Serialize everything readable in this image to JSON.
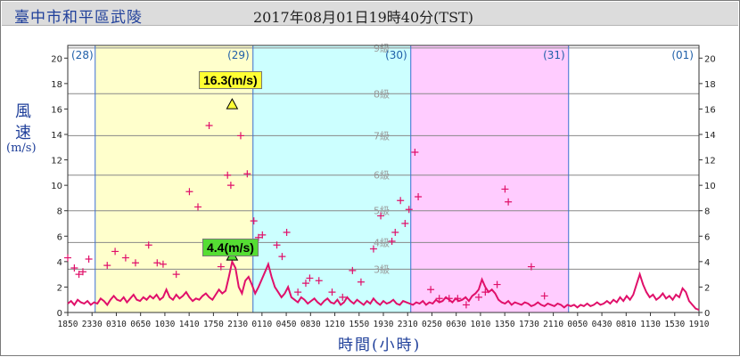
{
  "header": {
    "station": "臺中市和平區武陵",
    "datetime": "2017年08月01日19時40分(TST)"
  },
  "axis": {
    "ylabel_chars": [
      "風",
      "速"
    ],
    "ylabel_unit": "(m/s)",
    "xlabel": "時間(小時)"
  },
  "callouts": {
    "max": "16.3(m/s)",
    "min": "4.4(m/s)"
  },
  "colors": {
    "day29": "#ffffcc",
    "day30": "#ccffff",
    "day31": "#ffccff",
    "series": "#e0106a",
    "gust_marker": "#e0106a",
    "grid": "#888888",
    "day_divider": "#3a6fd0",
    "title": "#1f3f9a"
  },
  "chart_data": {
    "type": "line",
    "ylim": [
      0,
      21
    ],
    "xlim_hours": [
      0,
      96
    ],
    "yticks": [
      0,
      2,
      4,
      6,
      8,
      10,
      12,
      14,
      16,
      18,
      20
    ],
    "xtick_labels": [
      "1850",
      "2330",
      "0310",
      "0650",
      "1030",
      "1410",
      "1750",
      "2130",
      "0110",
      "0450",
      "0830",
      "1210",
      "1550",
      "1930",
      "2310",
      "0250",
      "0630",
      "1010",
      "1350",
      "1730",
      "2110",
      "0050",
      "0430",
      "0810",
      "1130",
      "1530",
      "1910"
    ],
    "day_labels": [
      "(28)",
      "(29)",
      "(30)",
      "(31)",
      "(01)"
    ],
    "beaufort_labels": [
      "3級",
      "4級",
      "5級",
      "6級",
      "7級",
      "8級",
      "9級"
    ],
    "beaufort_thresholds": [
      3.4,
      5.5,
      8.0,
      10.8,
      13.9,
      17.2,
      20.8
    ],
    "day_boundaries_hours": [
      4.17,
      28.17,
      52.17,
      76.17
    ],
    "max_annotation": {
      "hour": 25.0,
      "value": 16.3,
      "label": "16.3(m/s)"
    },
    "min_annotation": {
      "hour": 25.0,
      "value": 4.4,
      "label": "4.4(m/s)"
    },
    "series": [
      {
        "kind": "mean_wind",
        "points": [
          [
            0,
            0.7
          ],
          [
            0.5,
            0.9
          ],
          [
            1,
            0.6
          ],
          [
            1.5,
            1.0
          ],
          [
            2,
            0.8
          ],
          [
            2.5,
            0.7
          ],
          [
            3,
            0.9
          ],
          [
            3.5,
            0.6
          ],
          [
            4,
            0.8
          ],
          [
            4.5,
            0.7
          ],
          [
            5,
            1.1
          ],
          [
            5.5,
            0.9
          ],
          [
            6,
            0.6
          ],
          [
            6.5,
            1.0
          ],
          [
            7,
            1.3
          ],
          [
            7.5,
            1.0
          ],
          [
            8,
            0.9
          ],
          [
            8.5,
            1.2
          ],
          [
            9,
            0.8
          ],
          [
            9.5,
            1.1
          ],
          [
            10,
            1.4
          ],
          [
            10.5,
            1.0
          ],
          [
            11,
            0.9
          ],
          [
            11.5,
            1.2
          ],
          [
            12,
            1.0
          ],
          [
            12.5,
            1.3
          ],
          [
            13,
            1.1
          ],
          [
            13.5,
            1.4
          ],
          [
            14,
            1.0
          ],
          [
            14.5,
            1.2
          ],
          [
            15,
            1.8
          ],
          [
            15.5,
            1.2
          ],
          [
            16,
            1.0
          ],
          [
            16.5,
            1.4
          ],
          [
            17,
            1.1
          ],
          [
            17.5,
            1.3
          ],
          [
            18,
            1.6
          ],
          [
            18.5,
            1.2
          ],
          [
            19,
            0.9
          ],
          [
            19.5,
            1.1
          ],
          [
            20,
            1.0
          ],
          [
            20.5,
            1.3
          ],
          [
            21,
            1.5
          ],
          [
            21.5,
            1.2
          ],
          [
            22,
            1.0
          ],
          [
            22.5,
            1.4
          ],
          [
            23,
            1.8
          ],
          [
            23.5,
            1.5
          ],
          [
            24,
            1.7
          ],
          [
            24.5,
            2.8
          ],
          [
            25,
            4.0
          ],
          [
            25.5,
            3.5
          ],
          [
            26,
            2.0
          ],
          [
            26.5,
            1.5
          ],
          [
            27,
            2.5
          ],
          [
            27.5,
            2.8
          ],
          [
            28,
            2.2
          ],
          [
            28.5,
            1.5
          ],
          [
            29,
            2.0
          ],
          [
            29.5,
            2.6
          ],
          [
            30,
            3.2
          ],
          [
            30.5,
            3.8
          ],
          [
            31,
            2.8
          ],
          [
            31.5,
            2.0
          ],
          [
            32,
            1.6
          ],
          [
            32.5,
            1.2
          ],
          [
            33,
            1.5
          ],
          [
            33.5,
            2.0
          ],
          [
            34,
            1.2
          ],
          [
            34.5,
            1.0
          ],
          [
            35,
            0.8
          ],
          [
            35.5,
            1.2
          ],
          [
            36,
            1.0
          ],
          [
            36.5,
            0.7
          ],
          [
            37,
            0.9
          ],
          [
            37.5,
            1.1
          ],
          [
            38,
            0.8
          ],
          [
            38.5,
            0.6
          ],
          [
            39,
            0.9
          ],
          [
            39.5,
            1.1
          ],
          [
            40,
            0.8
          ],
          [
            40.5,
            0.7
          ],
          [
            41,
            1.0
          ],
          [
            41.5,
            0.6
          ],
          [
            42,
            0.8
          ],
          [
            42.5,
            1.2
          ],
          [
            43,
            0.9
          ],
          [
            43.5,
            0.7
          ],
          [
            44,
            1.0
          ],
          [
            44.5,
            0.8
          ],
          [
            45,
            0.6
          ],
          [
            45.5,
            0.9
          ],
          [
            46,
            0.7
          ],
          [
            46.5,
            1.1
          ],
          [
            47,
            0.8
          ],
          [
            47.5,
            0.6
          ],
          [
            48,
            0.9
          ],
          [
            48.5,
            0.7
          ],
          [
            49,
            0.8
          ],
          [
            49.5,
            1.0
          ],
          [
            50,
            0.7
          ],
          [
            50.5,
            0.6
          ],
          [
            51,
            0.9
          ],
          [
            51.5,
            0.8
          ],
          [
            52,
            0.7
          ],
          [
            52.5,
            0.6
          ],
          [
            53,
            0.8
          ],
          [
            53.5,
            0.7
          ],
          [
            54,
            0.9
          ],
          [
            54.5,
            0.6
          ],
          [
            55,
            0.8
          ],
          [
            55.5,
            0.7
          ],
          [
            56,
            1.0
          ],
          [
            56.5,
            0.8
          ],
          [
            57,
            0.9
          ],
          [
            57.5,
            1.2
          ],
          [
            58,
            1.0
          ],
          [
            58.5,
            0.8
          ],
          [
            59,
            1.1
          ],
          [
            59.5,
            0.9
          ],
          [
            60,
            1.0
          ],
          [
            60.5,
            1.2
          ],
          [
            61,
            0.9
          ],
          [
            61.5,
            1.3
          ],
          [
            62,
            1.5
          ],
          [
            62.5,
            1.8
          ],
          [
            63,
            2.6
          ],
          [
            63.5,
            2.0
          ],
          [
            64,
            1.6
          ],
          [
            64.5,
            1.8
          ],
          [
            65,
            1.5
          ],
          [
            65.5,
            1.0
          ],
          [
            66,
            0.8
          ],
          [
            66.5,
            0.7
          ],
          [
            67,
            0.9
          ],
          [
            67.5,
            0.6
          ],
          [
            68,
            0.8
          ],
          [
            68.5,
            0.7
          ],
          [
            69,
            0.6
          ],
          [
            69.5,
            0.8
          ],
          [
            70,
            0.7
          ],
          [
            70.5,
            0.5
          ],
          [
            71,
            0.6
          ],
          [
            71.5,
            0.8
          ],
          [
            72,
            0.6
          ],
          [
            72.5,
            0.5
          ],
          [
            73,
            0.7
          ],
          [
            73.5,
            0.6
          ],
          [
            74,
            0.5
          ],
          [
            74.5,
            0.7
          ],
          [
            75,
            0.6
          ],
          [
            75.5,
            0.4
          ],
          [
            76,
            0.6
          ],
          [
            76.5,
            0.5
          ],
          [
            77,
            0.6
          ],
          [
            77.5,
            0.4
          ],
          [
            78,
            0.6
          ],
          [
            78.5,
            0.5
          ],
          [
            79,
            0.7
          ],
          [
            79.5,
            0.5
          ],
          [
            80,
            0.6
          ],
          [
            80.5,
            0.8
          ],
          [
            81,
            0.6
          ],
          [
            81.5,
            0.7
          ],
          [
            82,
            0.9
          ],
          [
            82.5,
            0.7
          ],
          [
            83,
            1.0
          ],
          [
            83.5,
            0.8
          ],
          [
            84,
            1.2
          ],
          [
            84.5,
            0.9
          ],
          [
            85,
            1.3
          ],
          [
            85.5,
            1.0
          ],
          [
            86,
            1.4
          ],
          [
            86.5,
            2.2
          ],
          [
            87,
            3.0
          ],
          [
            87.5,
            2.2
          ],
          [
            88,
            1.6
          ],
          [
            88.5,
            1.2
          ],
          [
            89,
            1.4
          ],
          [
            89.5,
            1.0
          ],
          [
            90,
            1.2
          ],
          [
            90.5,
            1.5
          ],
          [
            91,
            1.1
          ],
          [
            91.5,
            1.3
          ],
          [
            92,
            1.0
          ],
          [
            92.5,
            1.4
          ],
          [
            93,
            1.2
          ],
          [
            93.5,
            1.9
          ],
          [
            94,
            1.6
          ],
          [
            94.5,
            0.9
          ],
          [
            95,
            0.6
          ],
          [
            95.5,
            0.3
          ],
          [
            96,
            0.2
          ]
        ]
      },
      {
        "kind": "gust",
        "points": [
          [
            0,
            4.3
          ],
          [
            1,
            3.5
          ],
          [
            1.7,
            3.0
          ],
          [
            2.3,
            3.2
          ],
          [
            3.2,
            4.2
          ],
          [
            6,
            3.7
          ],
          [
            7.2,
            4.8
          ],
          [
            8.8,
            4.3
          ],
          [
            10.3,
            3.9
          ],
          [
            12.3,
            5.3
          ],
          [
            13.6,
            3.9
          ],
          [
            14.5,
            3.8
          ],
          [
            16.5,
            3.0
          ],
          [
            18.5,
            9.5
          ],
          [
            19.8,
            8.3
          ],
          [
            21.5,
            14.7
          ],
          [
            23.3,
            3.6
          ],
          [
            24.3,
            10.8
          ],
          [
            24.8,
            10.0
          ],
          [
            26.3,
            13.9
          ],
          [
            27.3,
            10.9
          ],
          [
            28.3,
            7.2
          ],
          [
            29,
            5.9
          ],
          [
            29.6,
            6.1
          ],
          [
            31.8,
            5.3
          ],
          [
            32.6,
            4.4
          ],
          [
            33.3,
            6.3
          ],
          [
            35,
            1.6
          ],
          [
            36.2,
            2.3
          ],
          [
            36.8,
            2.7
          ],
          [
            38.2,
            2.5
          ],
          [
            40.2,
            1.6
          ],
          [
            41.8,
            1.2
          ],
          [
            43.3,
            3.3
          ],
          [
            44.6,
            2.4
          ],
          [
            46.5,
            5.0
          ],
          [
            47.6,
            7.6
          ],
          [
            49.3,
            5.6
          ],
          [
            49.8,
            6.3
          ],
          [
            50.6,
            8.8
          ],
          [
            51.3,
            7.0
          ],
          [
            51.9,
            8.1
          ],
          [
            52.8,
            12.6
          ],
          [
            53.3,
            9.1
          ],
          [
            55.2,
            1.8
          ],
          [
            56.5,
            1.1
          ],
          [
            58,
            1.1
          ],
          [
            59.3,
            1.1
          ],
          [
            60.6,
            0.6
          ],
          [
            62.5,
            1.2
          ],
          [
            63.5,
            1.6
          ],
          [
            65.3,
            2.2
          ],
          [
            66.5,
            9.7
          ],
          [
            67,
            8.7
          ],
          [
            70.5,
            3.6
          ],
          [
            72.5,
            1.3
          ]
        ]
      }
    ]
  }
}
